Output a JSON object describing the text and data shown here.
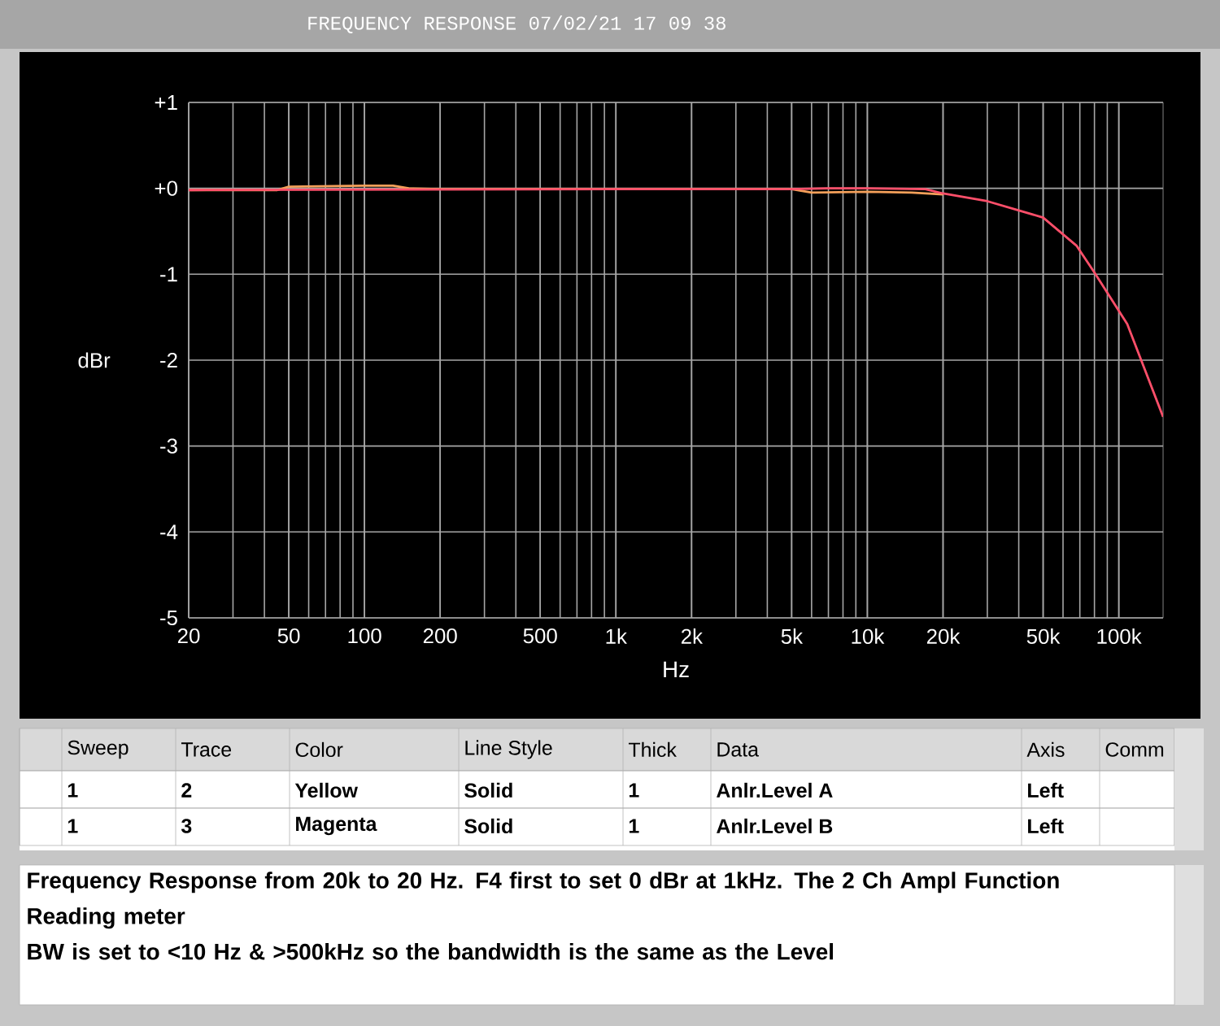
{
  "chart_data": {
    "type": "line",
    "title": "FREQUENCY RESPONSE    07/02/21 17 09 38",
    "xlabel": "Hz",
    "ylabel": "dBr",
    "log": "x",
    "grid": true,
    "line_style": "solid",
    "xlim": [
      20,
      150000
    ],
    "ylim": [
      -5,
      1
    ],
    "xticks": [
      20,
      50,
      100,
      200,
      500,
      {
        "value": 1000,
        "label": "1k"
      },
      {
        "value": 2000,
        "label": "2k"
      },
      {
        "value": 5000,
        "label": "5k"
      },
      {
        "value": 10000,
        "label": "10k"
      },
      {
        "value": 20000,
        "label": "20k"
      },
      {
        "value": 50000,
        "label": "50k"
      },
      {
        "value": 100000,
        "label": "100k"
      }
    ],
    "yticks": [
      {
        "value": 1,
        "label": "+1"
      },
      {
        "value": 0,
        "label": "+0"
      },
      -1,
      -2,
      -3,
      -4,
      -5
    ],
    "series": [
      {
        "color": "#f5a05a",
        "x": [
          20,
          45,
          50,
          100,
          130,
          150,
          200,
          1000,
          5000,
          6000,
          10000,
          15000,
          20000
        ],
        "values": [
          -0.02,
          -0.02,
          0.02,
          0.03,
          0.03,
          0.0,
          -0.01,
          -0.01,
          -0.01,
          -0.05,
          -0.04,
          -0.05,
          -0.07
        ]
      },
      {
        "color": "#ff4f6a",
        "x": [
          20,
          1000,
          5000,
          7000,
          10000,
          17000,
          20000,
          30000,
          50000,
          68000,
          80000,
          108000,
          150000
        ],
        "values": [
          -0.02,
          -0.01,
          -0.01,
          0.0,
          0.0,
          -0.01,
          -0.06,
          -0.15,
          -0.34,
          -0.67,
          -0.98,
          -1.58,
          -2.66
        ]
      }
    ],
    "annotations": [
      "Sweep",
      "Trace",
      "Color",
      "Line Style",
      "Thick",
      "Data",
      "Axis",
      "Comm",
      "1",
      "2",
      "Yellow",
      "Solid",
      "1",
      "Anlr.Level A",
      "Left",
      "1",
      "3",
      "Magenta",
      "Solid",
      "1",
      "Anlr.Level B",
      "Left",
      "Frequency Response from 20k to 20 Hz.  F4 first to set 0 dBr at 1kHz.  The 2 Ch Ampl Function Reading meter",
      "BW is set to <10 Hz & >500kHz so the bandwidth is the same as the Level"
    ]
  }
}
